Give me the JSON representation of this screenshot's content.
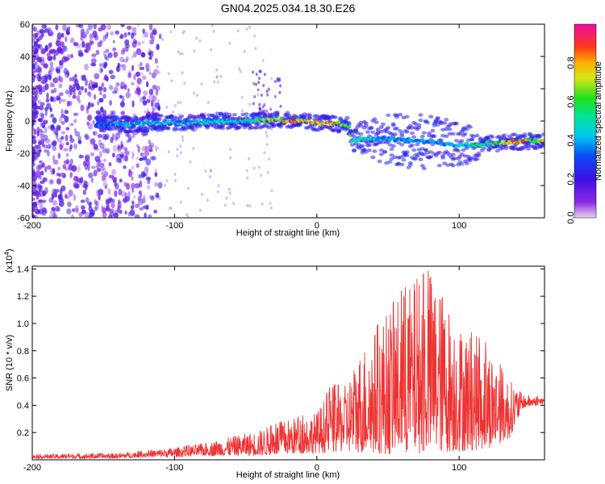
{
  "title": "GN04.2025.034.18.30.E26",
  "colors": {
    "snr_line": "#ee3333",
    "background": "#ffffff",
    "axis": "#000000"
  },
  "chart_data": [
    {
      "type": "heatmap",
      "xlabel": "Height of straight line (km)",
      "ylabel": "Frequency (Hz)",
      "xlim": [
        -200,
        160
      ],
      "ylim": [
        -60,
        60
      ],
      "xticks": [
        -200,
        -100,
        0,
        100
      ],
      "yticks": [
        60,
        40,
        20,
        0,
        -20,
        -40,
        -60
      ],
      "colorbar": {
        "label": "Normalized spectral amplitude",
        "ticks": [
          "0.0",
          "0.2",
          "0.4",
          "0.6",
          "0.8"
        ],
        "range": [
          0,
          1
        ],
        "colormap": "rainbow (violet-blue-cyan-green-yellow-red-magenta)"
      },
      "ridge": [
        {
          "x": -150,
          "y": -2,
          "amp": 0.35
        },
        {
          "x": -130,
          "y": -2,
          "amp": 0.45
        },
        {
          "x": -110,
          "y": -1,
          "amp": 0.45
        },
        {
          "x": -90,
          "y": -1,
          "amp": 0.45
        },
        {
          "x": -70,
          "y": 0,
          "amp": 0.5
        },
        {
          "x": -50,
          "y": 0,
          "amp": 0.5
        },
        {
          "x": -30,
          "y": 1,
          "amp": 0.75
        },
        {
          "x": -15,
          "y": 0,
          "amp": 0.85
        },
        {
          "x": 0,
          "y": -1,
          "amp": 0.85
        },
        {
          "x": 15,
          "y": -2,
          "amp": 0.75
        },
        {
          "x": 22,
          "y": -2,
          "amp": 0.7
        },
        {
          "x": 25,
          "y": -12,
          "amp": 0.55
        },
        {
          "x": 40,
          "y": -11,
          "amp": 0.45
        },
        {
          "x": 60,
          "y": -12,
          "amp": 0.4
        },
        {
          "x": 80,
          "y": -13,
          "amp": 0.4
        },
        {
          "x": 100,
          "y": -15,
          "amp": 0.45
        },
        {
          "x": 120,
          "y": -14,
          "amp": 0.55
        },
        {
          "x": 140,
          "y": -13,
          "amp": 0.85
        },
        {
          "x": 160,
          "y": -12,
          "amp": 0.7
        }
      ]
    },
    {
      "type": "line",
      "xlabel": "Height of straight line (km)",
      "ylabel": "SNR (10 * v/v)",
      "y_multiplier": "(x10",
      "y_multiplier_exp": "4",
      "xlim": [
        -200,
        160
      ],
      "ylim": [
        0,
        1.42
      ],
      "xticks": [
        -200,
        -100,
        0,
        100
      ],
      "yticks": [
        0.2,
        0.4,
        0.6,
        0.8,
        1.0,
        1.2,
        1.4
      ],
      "series": [
        {
          "color": "#ee3333",
          "envelope": [
            {
              "x": -200,
              "low": 0.01,
              "high": 0.04
            },
            {
              "x": -140,
              "low": 0.01,
              "high": 0.05
            },
            {
              "x": -120,
              "low": 0.02,
              "high": 0.07
            },
            {
              "x": -100,
              "low": 0.02,
              "high": 0.09
            },
            {
              "x": -80,
              "low": 0.03,
              "high": 0.12
            },
            {
              "x": -60,
              "low": 0.03,
              "high": 0.17
            },
            {
              "x": -40,
              "low": 0.03,
              "high": 0.22
            },
            {
              "x": -20,
              "low": 0.04,
              "high": 0.3
            },
            {
              "x": 0,
              "low": 0.05,
              "high": 0.35
            },
            {
              "x": 10,
              "low": 0.05,
              "high": 0.55
            },
            {
              "x": 20,
              "low": 0.06,
              "high": 0.55
            },
            {
              "x": 30,
              "low": 0.05,
              "high": 0.8
            },
            {
              "x": 50,
              "low": 0.04,
              "high": 1.1
            },
            {
              "x": 60,
              "low": 0.04,
              "high": 1.25
            },
            {
              "x": 80,
              "low": 0.05,
              "high": 1.4
            },
            {
              "x": 100,
              "low": 0.06,
              "high": 1.0
            },
            {
              "x": 120,
              "low": 0.08,
              "high": 0.85
            },
            {
              "x": 135,
              "low": 0.15,
              "high": 0.6
            },
            {
              "x": 145,
              "low": 0.38,
              "high": 0.48
            },
            {
              "x": 160,
              "low": 0.41,
              "high": 0.46
            }
          ]
        }
      ]
    }
  ]
}
